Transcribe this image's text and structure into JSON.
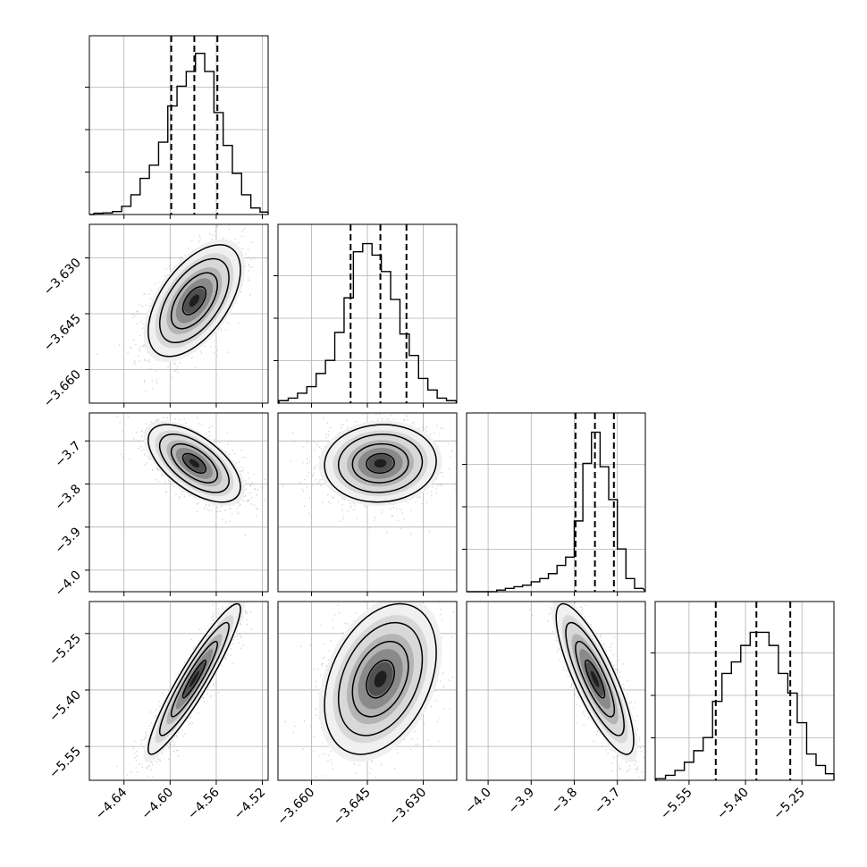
{
  "chart_data": {
    "type": "corner",
    "grid": true,
    "quantile_lines": "dashed",
    "colors": {
      "ink": "#000000",
      "grid": "#b0b0b0",
      "scatter": "#9a9a9a"
    },
    "parameters": [
      {
        "range": [
          -4.67,
          -4.515
        ],
        "ticks": [
          -4.64,
          -4.6,
          -4.56,
          -4.52
        ],
        "tick_labels": [
          "−4.64",
          "−4.60",
          "−4.56",
          "−4.52"
        ],
        "median": -4.579,
        "q16": -4.599,
        "q84": -4.559,
        "hist_x": [
          -4.662,
          -4.654,
          -4.646,
          -4.638,
          -4.63,
          -4.622,
          -4.614,
          -4.606,
          -4.598,
          -4.59,
          -4.582,
          -4.574,
          -4.566,
          -4.558,
          -4.55,
          -4.542,
          -4.534,
          -4.526,
          -4.518
        ],
        "hist_counts": [
          0.008,
          0.01,
          0.018,
          0.05,
          0.12,
          0.22,
          0.3,
          0.44,
          0.66,
          0.78,
          0.87,
          0.98,
          0.87,
          0.62,
          0.42,
          0.25,
          0.12,
          0.04,
          0.015
        ]
      },
      {
        "range": [
          -3.669,
          -3.621
        ],
        "ticks": [
          -3.66,
          -3.645,
          -3.63
        ],
        "tick_labels": [
          "−3.660",
          "−3.645",
          "−3.630"
        ],
        "median": -3.6415,
        "q16": -3.6495,
        "q84": -3.6345,
        "hist_x": [
          -3.6675,
          -3.665,
          -3.6625,
          -3.66,
          -3.6575,
          -3.655,
          -3.6525,
          -3.65,
          -3.6475,
          -3.645,
          -3.6425,
          -3.64,
          -3.6375,
          -3.635,
          -3.6325,
          -3.63,
          -3.6275,
          -3.625,
          -3.6225
        ],
        "hist_counts": [
          0.015,
          0.03,
          0.06,
          0.1,
          0.18,
          0.26,
          0.43,
          0.64,
          0.92,
          0.97,
          0.9,
          0.8,
          0.63,
          0.42,
          0.29,
          0.15,
          0.08,
          0.03,
          0.015
        ]
      },
      {
        "range": [
          -4.05,
          -3.635
        ],
        "ticks": [
          -4.0,
          -3.9,
          -3.8,
          -3.7
        ],
        "tick_labels": [
          "−4.0",
          "−3.9",
          "−3.8",
          "−3.7"
        ],
        "median": -3.752,
        "q16": -3.797,
        "q84": -3.708,
        "hist_x": [
          -3.97,
          -3.95,
          -3.93,
          -3.91,
          -3.89,
          -3.87,
          -3.85,
          -3.83,
          -3.81,
          -3.79,
          -3.77,
          -3.75,
          -3.73,
          -3.71,
          -3.69,
          -3.67,
          -3.65
        ],
        "hist_counts": [
          0.01,
          0.02,
          0.03,
          0.04,
          0.06,
          0.08,
          0.11,
          0.16,
          0.21,
          0.43,
          0.78,
          0.97,
          0.76,
          0.56,
          0.26,
          0.08,
          0.02
        ]
      },
      {
        "range": [
          -5.64,
          -5.165
        ],
        "ticks": [
          -5.55,
          -5.4,
          -5.25
        ],
        "tick_labels": [
          "−5.55",
          "−5.40",
          "−5.25"
        ],
        "median": -5.371,
        "q16": -5.479,
        "q84": -5.281,
        "hist_x": [
          -5.625,
          -5.6,
          -5.575,
          -5.55,
          -5.525,
          -5.5,
          -5.475,
          -5.45,
          -5.425,
          -5.4,
          -5.375,
          -5.35,
          -5.325,
          -5.3,
          -5.275,
          -5.25,
          -5.225,
          -5.2,
          -5.175
        ],
        "hist_counts": [
          0.01,
          0.03,
          0.06,
          0.11,
          0.18,
          0.26,
          0.48,
          0.65,
          0.72,
          0.82,
          0.9,
          0.9,
          0.82,
          0.65,
          0.53,
          0.35,
          0.16,
          0.09,
          0.04
        ]
      }
    ],
    "pairs": [
      {
        "row": 1,
        "col": 0,
        "mean": [
          -4.579,
          -3.6415
        ],
        "sd": [
          0.02,
          0.0075
        ],
        "rho": 0.55
      },
      {
        "row": 2,
        "col": 0,
        "mean": [
          -4.579,
          -3.752
        ],
        "sd": [
          0.02,
          0.045
        ],
        "rho": -0.6
      },
      {
        "row": 2,
        "col": 1,
        "mean": [
          -3.6415,
          -3.752
        ],
        "sd": [
          0.0075,
          0.045
        ],
        "rho": 0.05
      },
      {
        "row": 3,
        "col": 0,
        "mean": [
          -4.579,
          -5.371
        ],
        "sd": [
          0.02,
          0.1
        ],
        "rho": 0.93
      },
      {
        "row": 3,
        "col": 1,
        "mean": [
          -3.6415,
          -5.371
        ],
        "sd": [
          0.0075,
          0.1
        ],
        "rho": 0.35
      },
      {
        "row": 3,
        "col": 2,
        "mean": [
          -3.752,
          -5.371
        ],
        "sd": [
          0.045,
          0.1
        ],
        "rho": -0.82
      }
    ]
  }
}
